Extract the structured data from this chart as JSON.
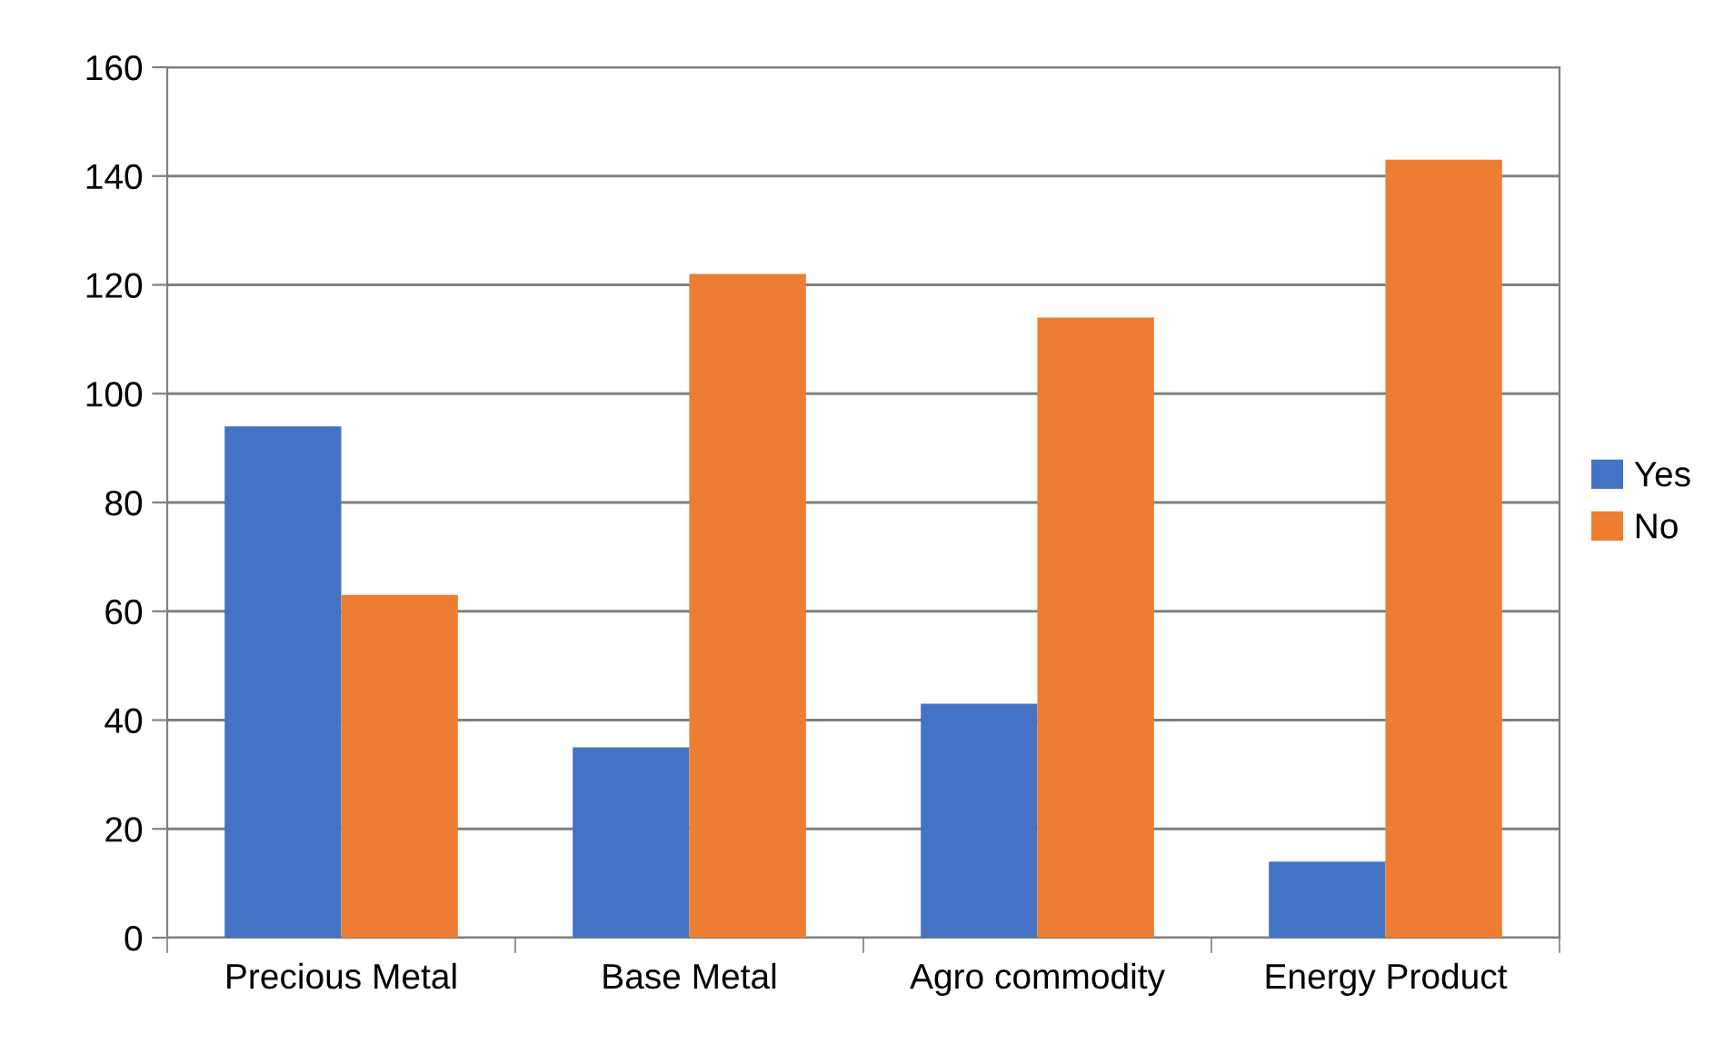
{
  "chart_data": {
    "type": "bar",
    "categories": [
      "Precious Metal",
      "Base Metal",
      "Agro commodity",
      "Energy Product"
    ],
    "series": [
      {
        "name": "Yes",
        "color": "#4472c4",
        "values": [
          94,
          35,
          43,
          14
        ]
      },
      {
        "name": "No",
        "color": "#ed7d31",
        "values": [
          63,
          122,
          114,
          143
        ]
      }
    ],
    "ylim": [
      0,
      160
    ],
    "yticks": [
      0,
      20,
      40,
      60,
      80,
      100,
      120,
      140,
      160
    ],
    "grid": "y",
    "legend": "right"
  }
}
